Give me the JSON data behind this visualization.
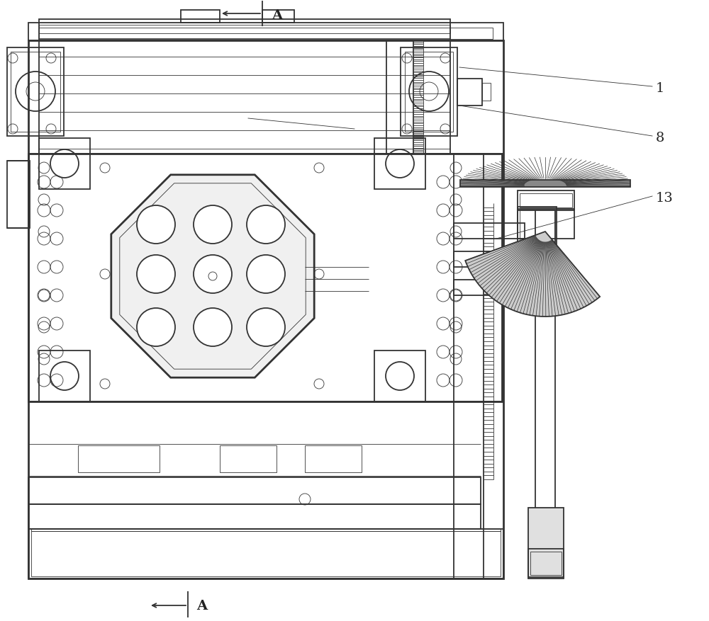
{
  "bg_color": "#ffffff",
  "lc": "#333333",
  "lw_main": 1.3,
  "lw_thin": 0.6,
  "lw_thick": 2.0,
  "label_color": "#222222"
}
